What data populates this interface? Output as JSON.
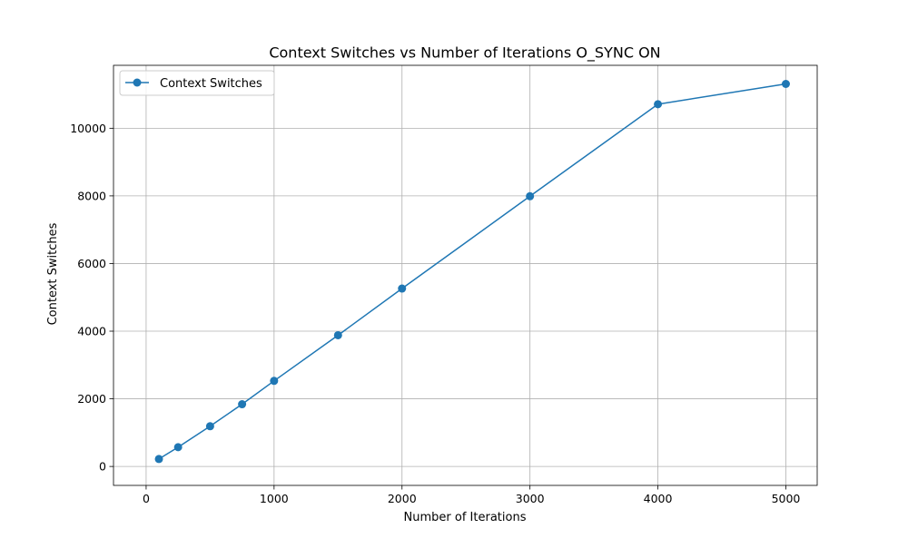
{
  "chart_data": {
    "type": "line",
    "title": "Context Switches vs Number of Iterations O_SYNC ON",
    "xlabel": "Number of Iterations",
    "ylabel": "Context Switches",
    "xlim": [
      -255,
      5245
    ],
    "ylim": [
      -560,
      11860
    ],
    "xticks": [
      0,
      1000,
      2000,
      3000,
      4000,
      5000
    ],
    "yticks": [
      0,
      2000,
      4000,
      6000,
      8000,
      10000
    ],
    "grid": true,
    "legend_position": "upper left",
    "series": [
      {
        "name": "Context Switches",
        "color": "#1f77b4",
        "marker": "circle",
        "x": [
          100,
          250,
          500,
          750,
          1000,
          1500,
          2000,
          3000,
          4000,
          5000
        ],
        "y": [
          220,
          570,
          1190,
          1840,
          2530,
          3880,
          5260,
          7990,
          10710,
          11310
        ]
      }
    ]
  }
}
